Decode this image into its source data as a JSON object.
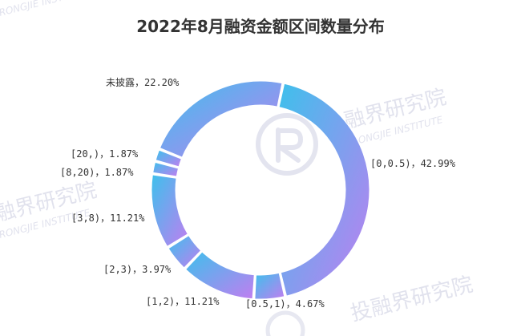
{
  "watermark": {
    "name": "融界研究院",
    "name_alt": "投融界研究院",
    "sub": "RONGJIE INSTITUTE",
    "color": "#c9cbe0"
  },
  "chart_data": {
    "type": "pie",
    "variant": "donut",
    "title": "2022年8月融资金额区间数量分布",
    "legend": "none",
    "gradient": {
      "from": "#3ec0ec",
      "to": "#c07ef0"
    },
    "slices": [
      {
        "label": "[0,0.5)",
        "value": 42.99,
        "display": "[0,0.5)，42.99%"
      },
      {
        "label": "[0.5,1)",
        "value": 4.67,
        "display": "[0.5,1)，4.67%"
      },
      {
        "label": "[1,2)",
        "value": 11.21,
        "display": "[1,2)，11.21%"
      },
      {
        "label": "[2,3)",
        "value": 3.97,
        "display": "[2,3)，3.97%"
      },
      {
        "label": "[3,8)",
        "value": 11.21,
        "display": "[3,8)，11.21%"
      },
      {
        "label": "[8,20)",
        "value": 1.87,
        "display": "[8,20)，1.87%"
      },
      {
        "label": "[20,)",
        "value": 1.87,
        "display": "[20,)，1.87%"
      },
      {
        "label": "未披露",
        "value": 22.2,
        "display": "未披露，22.20%"
      }
    ]
  }
}
